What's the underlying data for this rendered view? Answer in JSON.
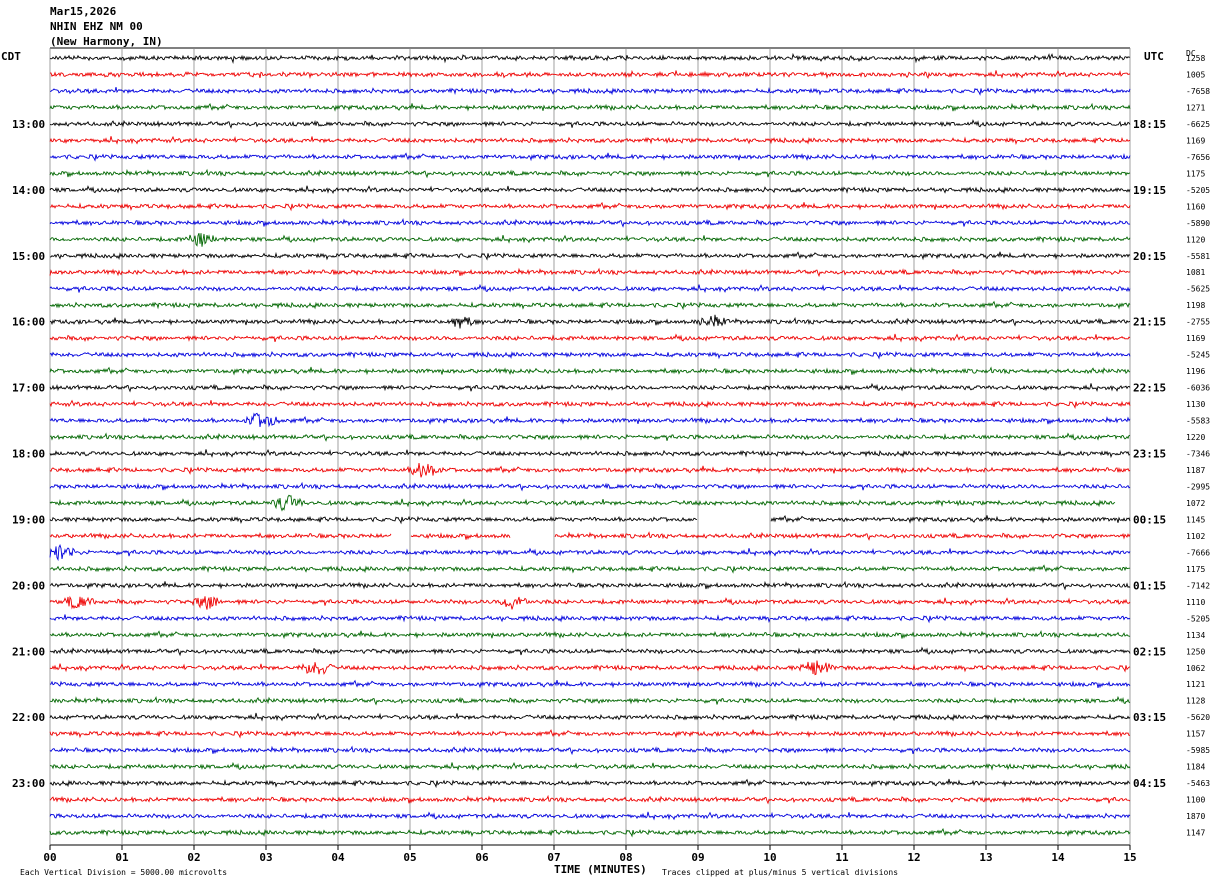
{
  "header": {
    "date": "Mar15,2026",
    "station": "NHIN EHZ NM 00",
    "location": "(New Harmony, IN)"
  },
  "left_tz": "CDT",
  "right_tz": "UTC",
  "dc_header": "DC",
  "footer": {
    "scale_note": "Each Vertical Division = 5000.00 microvolts",
    "clip_note": "Traces clipped at plus/minus 5 vertical divisions"
  },
  "colors": {
    "black": "#000000",
    "red": "#ee0000",
    "blue": "#0000dd",
    "green": "#006600",
    "grid": "#888888"
  },
  "chart_data": {
    "type": "line",
    "title": "NHIN EHZ NM 00",
    "xlabel": "TIME (MINUTES)",
    "ylabel": "",
    "xlim": [
      0,
      15
    ],
    "x_ticks": [
      "00",
      "01",
      "02",
      "03",
      "04",
      "05",
      "06",
      "07",
      "08",
      "09",
      "10",
      "11",
      "12",
      "13",
      "14",
      "15"
    ],
    "left_hour_labels": [
      "13:00",
      "14:00",
      "15:00",
      "16:00",
      "17:00",
      "18:00",
      "19:00",
      "20:00",
      "21:00",
      "22:00",
      "23:00"
    ],
    "right_hour_labels": [
      "18:15",
      "19:15",
      "20:15",
      "21:15",
      "22:15",
      "23:15",
      "00:15",
      "01:15",
      "02:15",
      "03:15",
      "04:15"
    ],
    "trace_colors": [
      "black",
      "red",
      "blue",
      "green"
    ],
    "dc_offsets": [
      "1258",
      "1005",
      "-7658",
      "1271",
      "-6625",
      "1169",
      "-7656",
      "1175",
      "-5205",
      "1160",
      "-5890",
      "1120",
      "-5581",
      "1081",
      "-5625",
      "1198",
      "-2755",
      "1169",
      "-5245",
      "1196",
      "-6036",
      "1130",
      "-5583",
      "1220",
      "-7346",
      "1187",
      "-2995",
      "1072",
      "1145",
      "1102",
      "-7666",
      "1175",
      "-7142",
      "1110",
      "-5205",
      "1134",
      "1250",
      "1062",
      "1121",
      "1128",
      "-5620",
      "1157",
      "-5985",
      "1184",
      "-5463",
      "1100",
      "1870",
      "1147"
    ],
    "gaps": [
      {
        "trace": 28,
        "start_min": 9.0,
        "end_min": 10.0
      },
      {
        "trace": 29,
        "start_min": 4.75,
        "end_min": 5.0
      },
      {
        "trace": 29,
        "start_min": 6.4,
        "end_min": 7.0
      },
      {
        "trace": 27,
        "start_min": 14.8,
        "end_min": 15.0
      }
    ],
    "events": [
      {
        "trace": 11,
        "minute": 2.1,
        "amp": 1.6
      },
      {
        "trace": 16,
        "minute": 5.7,
        "amp": 1.5
      },
      {
        "trace": 16,
        "minute": 9.2,
        "amp": 1.3
      },
      {
        "trace": 22,
        "minute": 2.95,
        "amp": 2.4
      },
      {
        "trace": 25,
        "minute": 5.2,
        "amp": 2.2
      },
      {
        "trace": 27,
        "minute": 3.3,
        "amp": 2.0
      },
      {
        "trace": 30,
        "minute": 0.15,
        "amp": 2.2
      },
      {
        "trace": 33,
        "minute": 0.4,
        "amp": 1.6
      },
      {
        "trace": 33,
        "minute": 2.2,
        "amp": 1.6
      },
      {
        "trace": 33,
        "minute": 6.45,
        "amp": 1.8
      },
      {
        "trace": 37,
        "minute": 3.7,
        "amp": 2.2
      },
      {
        "trace": 37,
        "minute": 10.65,
        "amp": 2.2
      }
    ]
  }
}
